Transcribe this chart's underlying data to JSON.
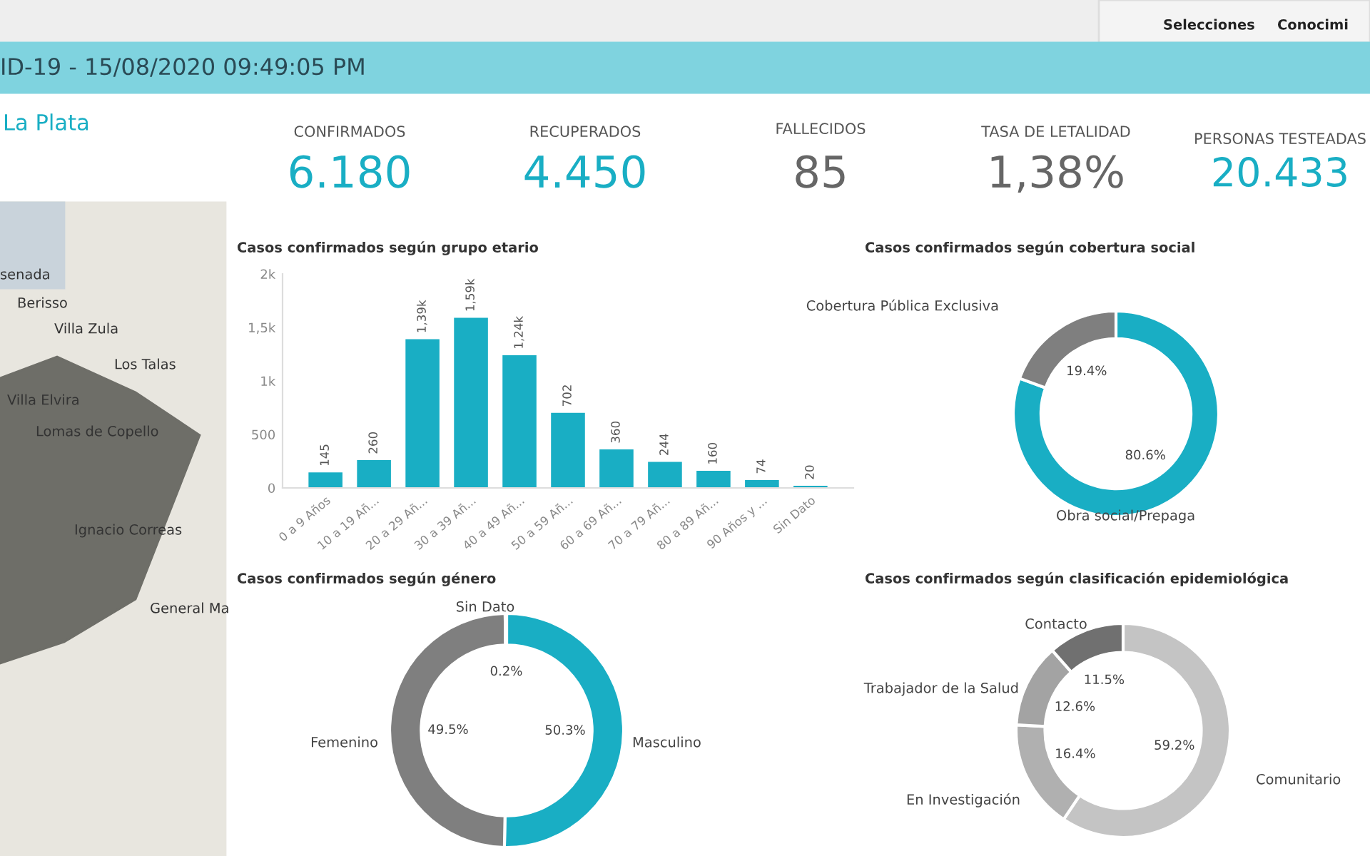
{
  "chart_data": [
    {
      "type": "other",
      "title": "ID-19 - 15/08/2020 09:49:05 PM",
      "annotations": [
        "Selecciones",
        "Conocimi",
        "La Plata",
        "CONFIRMADOS",
        "6.180",
        "RECUPERADOS",
        "4.450",
        "FALLECIDOS",
        "85",
        "TASA DE LETALIDAD",
        "1,38%",
        "PERSONAS TESTEADAS",
        "20.433",
        "senada",
        "Berisso",
        "Villa Zula",
        "Los Talas",
        "Villa Elvira",
        "Lomas de Copello",
        "Ignacio Correas",
        "General Ma"
      ]
    },
    {
      "type": "bar",
      "title": "Casos confirmados según grupo etario",
      "categories": [
        "0 a 9 Años",
        "10 a 19 Añ...",
        "20 a 29 Añ...",
        "30 a 39 Añ...",
        "40 a 49 Añ...",
        "50 a 59 Añ...",
        "60 a 69 Añ...",
        "70 a 79 Añ...",
        "80 a 89 Añ...",
        "90 Años y ...",
        "Sin Dato"
      ],
      "values": [
        145,
        260,
        1390,
        1590,
        1240,
        702,
        360,
        244,
        160,
        74,
        20
      ],
      "value_labels": [
        "145",
        "260",
        "1,39k",
        "1,59k",
        "1,24k",
        "702",
        "360",
        "244",
        "160",
        "74",
        "20"
      ],
      "color": "#19aec4",
      "ylim": [
        0,
        2000
      ],
      "yticks": [
        0,
        500,
        {
          "value": 1000,
          "label": "1k"
        },
        {
          "value": 1500,
          "label": "1,5k"
        },
        {
          "value": 2000,
          "label": "2k"
        }
      ],
      "grid": false
    },
    {
      "type": "donut",
      "title": "Casos confirmados según cobertura social",
      "categories": [
        "Obra social/Prepaga",
        "Cobertura Pública Exclusiva"
      ],
      "values": [
        80.6,
        19.4
      ],
      "value_labels": [
        "80.6%",
        "19.4%"
      ],
      "colors": [
        "#19aec4",
        "#7f7f7f"
      ]
    },
    {
      "type": "donut",
      "title": "Casos confirmados según género",
      "categories": [
        "Masculino",
        "Femenino",
        "Sin Dato"
      ],
      "values": [
        50.3,
        49.5,
        0.2
      ],
      "value_labels": [
        "50.3%",
        "49.5%",
        "0.2%"
      ],
      "colors": [
        "#19aec4",
        "#7f7f7f",
        "#cfcfcf"
      ]
    },
    {
      "type": "donut",
      "title": "Casos confirmados según clasificación epidemiológica",
      "categories": [
        "Comunitario",
        "En Investigación",
        "Trabajador de la Salud",
        "Contacto"
      ],
      "values": [
        59.2,
        16.4,
        12.6,
        11.5
      ],
      "value_labels": [
        "59.2%",
        "16.4%",
        "12.6%",
        "11.5%"
      ],
      "colors": [
        "#c4c4c4",
        "#b0b0b0",
        "#a3a3a3",
        "#707070"
      ]
    }
  ]
}
